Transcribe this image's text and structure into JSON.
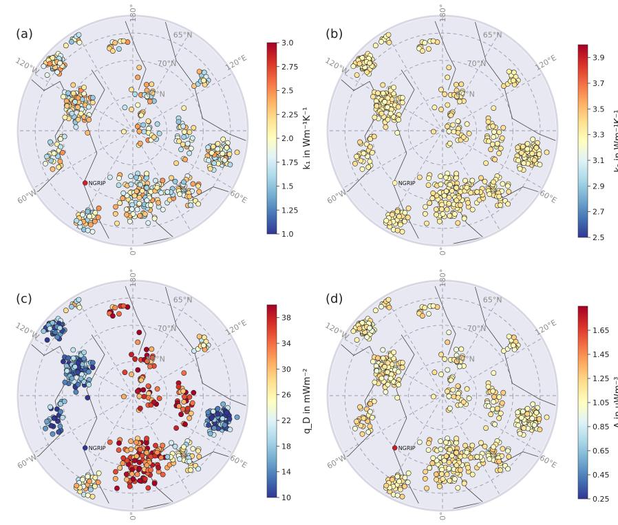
{
  "panels": [
    {
      "id": "a",
      "label": "(a)",
      "colorbar": {
        "label": "k₁ in Wm⁻¹K⁻¹",
        "min": 1.0,
        "max": 3.0,
        "ticks": [
          "1.0",
          "1.25",
          "1.5",
          "1.75",
          "2.0",
          "2.25",
          "2.5",
          "2.75",
          "3.0"
        ]
      },
      "ngrip_marker_value": 2.85,
      "point_bias": 0.5,
      "point_spread": 0.25
    },
    {
      "id": "b",
      "label": "(b)",
      "colorbar": {
        "label": "k₂ in Wm⁻¹K⁻¹",
        "min": 2.5,
        "max": 4.0,
        "ticks": [
          "2.5",
          "2.7",
          "2.9",
          "3.1",
          "3.3",
          "3.5",
          "3.7",
          "3.9"
        ]
      },
      "ngrip_marker_value": 3.3,
      "point_bias": 0.55,
      "point_spread": 0.06
    },
    {
      "id": "c",
      "label": "(c)",
      "colorbar": {
        "label": "q_D in mWm⁻²",
        "min": 10,
        "max": 40,
        "ticks": [
          "10",
          "14",
          "18",
          "22",
          "26",
          "30",
          "34",
          "38"
        ]
      },
      "ngrip_marker_value": 10,
      "point_bias": 0.5,
      "point_spread": 0.5
    },
    {
      "id": "d",
      "label": "(d)",
      "colorbar": {
        "label": "A in μWm⁻³",
        "min": 0.25,
        "max": 1.85,
        "ticks": [
          "0.25",
          "0.45",
          "0.65",
          "0.85",
          "1.05",
          "1.25",
          "1.45",
          "1.65"
        ]
      },
      "ngrip_marker_value": 1.75,
      "point_bias": 0.55,
      "point_spread": 0.1
    }
  ],
  "grid_labels": {
    "lat": [
      "65°N",
      "70°N",
      "80°N"
    ],
    "lon": [
      "180°",
      "120°E",
      "60°E",
      "0°",
      "60°W",
      "120°W"
    ]
  },
  "site_label": "NGRIP",
  "colors": {
    "map_bg": "#e8e8f2",
    "graticule": "#9a9aa8",
    "coast": "#444444"
  }
}
